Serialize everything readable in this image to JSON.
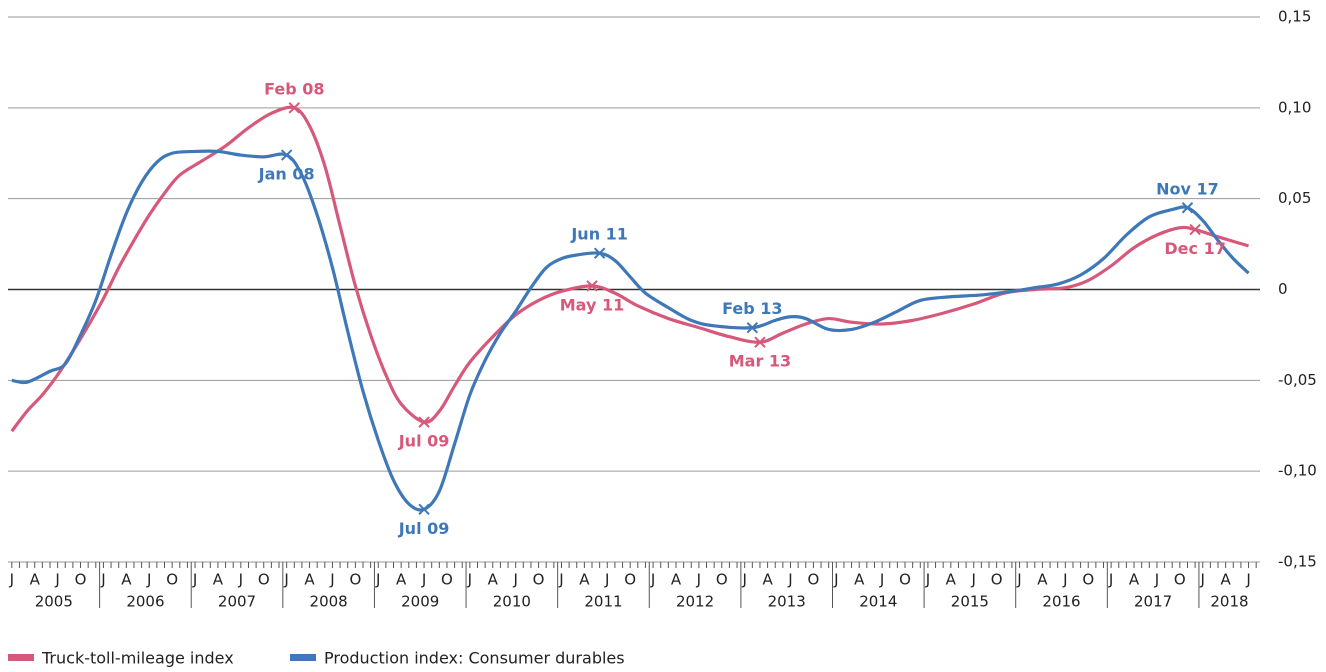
{
  "chart_data": {
    "type": "line",
    "xlim": [
      "2005-01",
      "2018-08"
    ],
    "years": [
      2005,
      2006,
      2007,
      2008,
      2009,
      2010,
      2011,
      2012,
      2013,
      2014,
      2015,
      2016,
      2017,
      2018
    ],
    "month_labels": [
      "J",
      "A",
      "J",
      "O"
    ],
    "ylim": [
      -0.15,
      0.15
    ],
    "yticks": [
      {
        "value": 0.15,
        "label": "0,15"
      },
      {
        "value": 0.1,
        "label": "0,10"
      },
      {
        "value": 0.05,
        "label": "0,05"
      },
      0,
      {
        "value": -0.05,
        "label": "-0,05"
      },
      {
        "value": -0.1,
        "label": "-0,10"
      },
      {
        "value": -0.15,
        "label": "-0,15"
      }
    ],
    "grid": true,
    "legend": "bottom",
    "series": [
      {
        "name": "Truck-toll-mileage index",
        "color": "#d6587a",
        "x": [
          "2005-01",
          "2005-03",
          "2005-05",
          "2005-07",
          "2005-09",
          "2005-11",
          "2006-01",
          "2006-03",
          "2006-05",
          "2006-07",
          "2006-09",
          "2006-11",
          "2007-02",
          "2007-05",
          "2007-08",
          "2007-11",
          "2008-02",
          "2008-04",
          "2008-06",
          "2008-08",
          "2008-10",
          "2008-12",
          "2009-02",
          "2009-04",
          "2009-07",
          "2009-09",
          "2009-11",
          "2010-01",
          "2010-04",
          "2010-07",
          "2010-10",
          "2011-01",
          "2011-05",
          "2011-08",
          "2011-11",
          "2012-03",
          "2012-07",
          "2012-11",
          "2013-03",
          "2013-06",
          "2013-09",
          "2013-12",
          "2014-03",
          "2014-07",
          "2014-11",
          "2015-03",
          "2015-07",
          "2015-11",
          "2016-03",
          "2016-07",
          "2016-10",
          "2017-01",
          "2017-04",
          "2017-07",
          "2017-10",
          "2017-12",
          "2018-03",
          "2018-07"
        ],
        "values": [
          -0.078,
          -0.067,
          -0.058,
          -0.047,
          -0.034,
          -0.02,
          -0.005,
          0.012,
          0.027,
          0.041,
          0.053,
          0.063,
          0.071,
          0.079,
          0.089,
          0.097,
          0.1,
          0.09,
          0.068,
          0.035,
          0.002,
          -0.025,
          -0.047,
          -0.063,
          -0.073,
          -0.067,
          -0.053,
          -0.04,
          -0.026,
          -0.014,
          -0.006,
          -0.001,
          0.002,
          -0.002,
          -0.009,
          -0.016,
          -0.021,
          -0.026,
          -0.029,
          -0.024,
          -0.019,
          -0.016,
          -0.018,
          -0.019,
          -0.017,
          -0.013,
          -0.008,
          -0.002,
          0,
          0.001,
          0.005,
          0.013,
          0.023,
          0.03,
          0.034,
          0.033,
          0.029,
          0.024
        ],
        "annotations": [
          {
            "x": "2008-02",
            "label": "Feb 08"
          },
          {
            "x": "2009-07",
            "label": "Jul 09"
          },
          {
            "x": "2011-05",
            "label": "May 11"
          },
          {
            "x": "2013-03",
            "label": "Mar 13"
          },
          {
            "x": "2017-12",
            "label": "Dec 17"
          }
        ]
      },
      {
        "name": "Production index: Consumer durables",
        "color": "#3f78b8",
        "x": [
          "2005-01",
          "2005-03",
          "2005-06",
          "2005-08",
          "2005-10",
          "2005-12",
          "2006-02",
          "2006-04",
          "2006-06",
          "2006-08",
          "2006-10",
          "2007-01",
          "2007-04",
          "2007-07",
          "2007-10",
          "2008-01",
          "2008-03",
          "2008-05",
          "2008-07",
          "2008-09",
          "2008-11",
          "2009-01",
          "2009-03",
          "2009-05",
          "2009-07",
          "2009-09",
          "2009-11",
          "2010-01",
          "2010-03",
          "2010-05",
          "2010-07",
          "2010-09",
          "2010-11",
          "2011-01",
          "2011-03",
          "2011-06",
          "2011-08",
          "2011-10",
          "2011-12",
          "2012-03",
          "2012-06",
          "2012-09",
          "2013-02",
          "2013-05",
          "2013-07",
          "2013-09",
          "2013-12",
          "2014-03",
          "2014-06",
          "2014-09",
          "2014-12",
          "2015-04",
          "2015-08",
          "2015-12",
          "2016-03",
          "2016-06",
          "2016-09",
          "2016-12",
          "2017-03",
          "2017-06",
          "2017-09",
          "2017-11",
          "2018-01",
          "2018-03",
          "2018-05",
          "2018-07"
        ],
        "values": [
          -0.05,
          -0.051,
          -0.045,
          -0.041,
          -0.025,
          -0.006,
          0.019,
          0.042,
          0.059,
          0.07,
          0.075,
          0.076,
          0.076,
          0.074,
          0.073,
          0.074,
          0.063,
          0.041,
          0.012,
          -0.023,
          -0.056,
          -0.083,
          -0.105,
          -0.118,
          -0.121,
          -0.111,
          -0.085,
          -0.058,
          -0.039,
          -0.024,
          -0.012,
          0.001,
          0.012,
          0.017,
          0.019,
          0.02,
          0.016,
          0.007,
          -0.002,
          -0.01,
          -0.017,
          -0.02,
          -0.021,
          -0.017,
          -0.015,
          -0.016,
          -0.022,
          -0.022,
          -0.018,
          -0.012,
          -0.006,
          -0.004,
          -0.003,
          -0.001,
          0.001,
          0.003,
          0.008,
          0.017,
          0.03,
          0.04,
          0.044,
          0.045,
          0.038,
          0.027,
          0.017,
          0.009
        ],
        "annotations": [
          {
            "x": "2008-01",
            "label": "Jan 08"
          },
          {
            "x": "2009-07",
            "label": "Jul 09"
          },
          {
            "x": "2011-06",
            "label": "Jun 11"
          },
          {
            "x": "2013-02",
            "label": "Feb 13"
          },
          {
            "x": "2017-11",
            "label": "Nov 17"
          }
        ]
      }
    ]
  }
}
